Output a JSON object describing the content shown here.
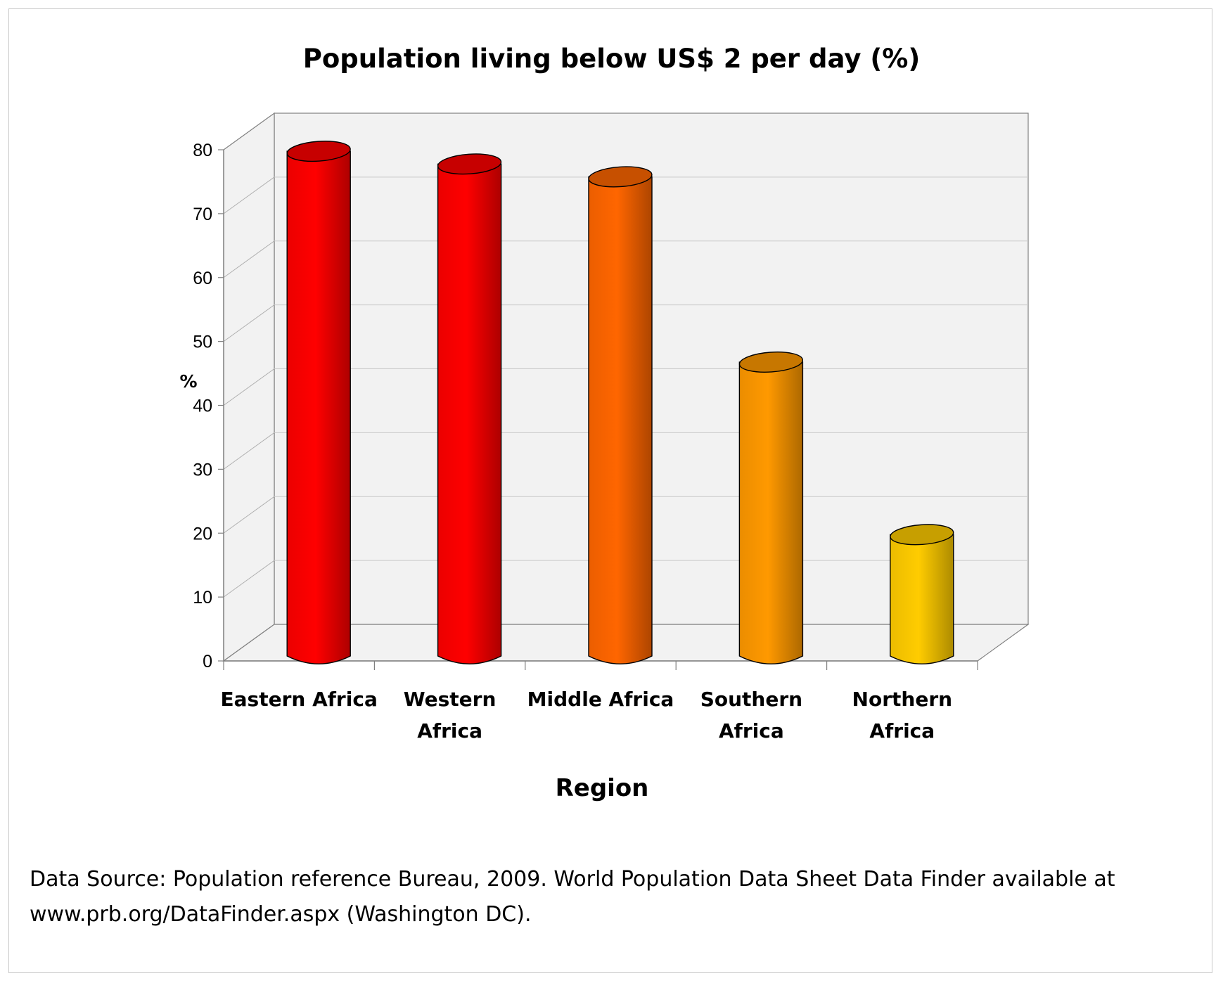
{
  "chart_data": {
    "type": "bar",
    "title": "Population living below US$ 2 per day (%)",
    "xlabel": "Region",
    "ylabel": "%",
    "ylim": [
      0,
      80
    ],
    "yticks": [
      "0",
      "10",
      "20",
      "30",
      "40",
      "50",
      "60",
      "70",
      "80"
    ],
    "categories": [
      [
        "Eastern Africa"
      ],
      [
        "Western",
        "Africa"
      ],
      [
        "Middle Africa"
      ],
      [
        "Southern",
        "Africa"
      ],
      [
        "Northern",
        "Africa"
      ]
    ],
    "values": [
      79,
      77,
      75,
      46,
      19
    ],
    "colors": [
      "#ff0000",
      "#ff0000",
      "#ff6600",
      "#ff9900",
      "#ffcc00"
    ],
    "grid": true,
    "style": "3d-cylinder"
  },
  "source": {
    "line1": "Data Source: Population reference Bureau, 2009. World Population Data Sheet Data Finder available at",
    "line2": "www.prb.org/DataFinder.aspx (Washington DC)."
  }
}
